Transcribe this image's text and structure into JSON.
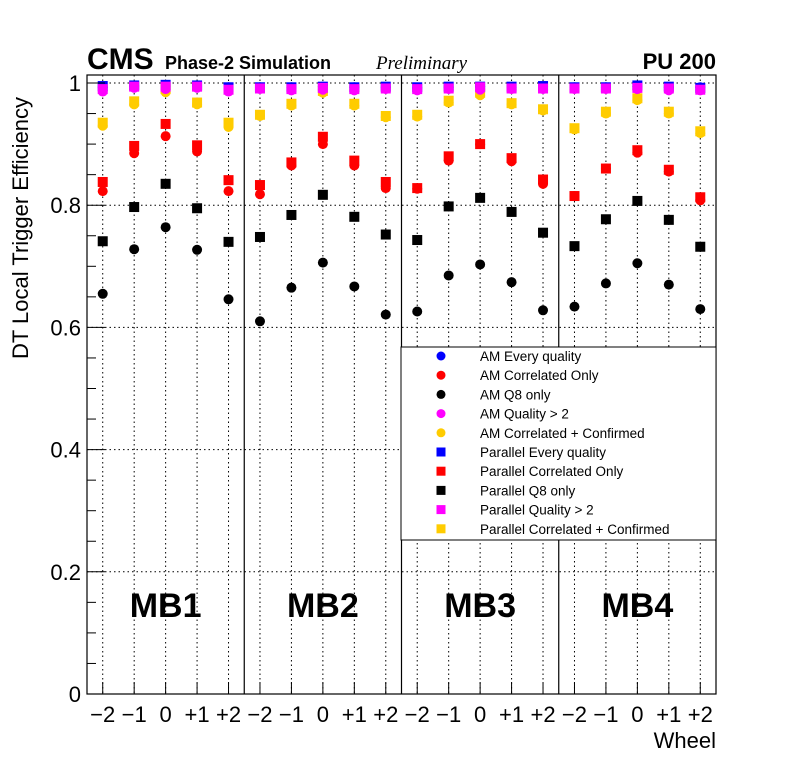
{
  "header": {
    "cms": "CMS",
    "sim": "Phase-2 Simulation",
    "prelim": "Preliminary",
    "pu": "PU 200"
  },
  "chart_data": {
    "type": "scatter",
    "ylabel": "DT Local Trigger Efficiency",
    "xlabel": "Wheel",
    "ylim": [
      0,
      1.01
    ],
    "yticks": [
      "0",
      "0.2",
      "0.4",
      "0.6",
      "0.8",
      "1"
    ],
    "ytick_values": [
      0,
      0.2,
      0.4,
      0.6,
      0.8,
      1.0
    ],
    "categories": [
      "−2",
      "−1",
      "0",
      "+1",
      "+2"
    ],
    "stations": [
      "MB1",
      "MB2",
      "MB3",
      "MB4"
    ],
    "grid": true,
    "legend_position": "center-right",
    "series": [
      {
        "name": "AM Every quality",
        "marker": "circle",
        "color": "#0000ff",
        "values": [
          [
            0.993,
            0.995,
            0.995,
            0.995,
            0.993
          ],
          [
            0.993,
            0.993,
            0.994,
            0.993,
            0.993
          ],
          [
            0.992,
            0.993,
            0.994,
            0.993,
            0.994
          ],
          [
            0.993,
            0.993,
            0.994,
            0.993,
            0.993
          ]
        ]
      },
      {
        "name": "AM Correlated Only",
        "marker": "circle",
        "color": "#ff0000",
        "values": [
          [
            0.823,
            0.885,
            0.913,
            0.888,
            0.823
          ],
          [
            0.818,
            0.865,
            0.9,
            0.865,
            0.828
          ],
          [
            0.827,
            0.873,
            0.9,
            0.872,
            0.835
          ],
          [
            0.815,
            0.86,
            0.886,
            0.855,
            0.808
          ]
        ]
      },
      {
        "name": "AM Q8 only",
        "marker": "circle",
        "color": "#000000",
        "values": [
          [
            0.655,
            0.728,
            0.764,
            0.727,
            0.646
          ],
          [
            0.61,
            0.665,
            0.706,
            0.667,
            0.621
          ],
          [
            0.626,
            0.685,
            0.703,
            0.674,
            0.628
          ],
          [
            0.634,
            0.672,
            0.705,
            0.67,
            0.63
          ]
        ]
      },
      {
        "name": "AM Quality > 2",
        "marker": "circle",
        "color": "#ff00ff",
        "values": [
          [
            0.986,
            0.992,
            0.99,
            0.992,
            0.986
          ],
          [
            0.99,
            0.988,
            0.989,
            0.988,
            0.99
          ],
          [
            0.988,
            0.99,
            0.989,
            0.99,
            0.99
          ],
          [
            0.99,
            0.99,
            0.99,
            0.988,
            0.988
          ]
        ]
      },
      {
        "name": "AM Correlated + Confirmed",
        "marker": "circle",
        "color": "#ffcc00",
        "values": [
          [
            0.93,
            0.965,
            0.985,
            0.965,
            0.928
          ],
          [
            0.946,
            0.963,
            0.984,
            0.963,
            0.944
          ],
          [
            0.945,
            0.968,
            0.98,
            0.965,
            0.955
          ],
          [
            0.924,
            0.95,
            0.972,
            0.95,
            0.918
          ]
        ]
      },
      {
        "name": "Parallel Every quality",
        "marker": "square",
        "color": "#0000ff",
        "values": [
          [
            0.995,
            0.996,
            0.997,
            0.996,
            0.993
          ],
          [
            0.993,
            0.993,
            0.994,
            0.993,
            0.994
          ],
          [
            0.993,
            0.994,
            0.994,
            0.994,
            0.995
          ],
          [
            0.993,
            0.993,
            0.996,
            0.994,
            0.992
          ]
        ]
      },
      {
        "name": "Parallel Correlated Only",
        "marker": "square",
        "color": "#ff0000",
        "values": [
          [
            0.838,
            0.897,
            0.933,
            0.898,
            0.841
          ],
          [
            0.833,
            0.87,
            0.912,
            0.873,
            0.838
          ],
          [
            0.828,
            0.88,
            0.9,
            0.877,
            0.842
          ],
          [
            0.815,
            0.86,
            0.89,
            0.858,
            0.813
          ]
        ]
      },
      {
        "name": "Parallel Q8 only",
        "marker": "square",
        "color": "#000000",
        "values": [
          [
            0.741,
            0.797,
            0.835,
            0.795,
            0.74
          ],
          [
            0.748,
            0.784,
            0.817,
            0.781,
            0.752
          ],
          [
            0.743,
            0.798,
            0.812,
            0.789,
            0.755
          ],
          [
            0.733,
            0.777,
            0.807,
            0.776,
            0.732
          ]
        ]
      },
      {
        "name": "Parallel Quality > 2",
        "marker": "square",
        "color": "#ff00ff",
        "values": [
          [
            0.99,
            0.994,
            0.994,
            0.994,
            0.989
          ],
          [
            0.991,
            0.99,
            0.992,
            0.99,
            0.991
          ],
          [
            0.99,
            0.991,
            0.993,
            0.991,
            0.991
          ],
          [
            0.991,
            0.991,
            0.992,
            0.991,
            0.989
          ]
        ]
      },
      {
        "name": "Parallel Correlated + Confirmed",
        "marker": "square",
        "color": "#ffcc00",
        "values": [
          [
            0.935,
            0.97,
            0.99,
            0.968,
            0.935
          ],
          [
            0.948,
            0.966,
            0.987,
            0.966,
            0.946
          ],
          [
            0.948,
            0.971,
            0.984,
            0.967,
            0.957
          ],
          [
            0.926,
            0.953,
            0.975,
            0.953,
            0.921
          ]
        ]
      }
    ]
  }
}
